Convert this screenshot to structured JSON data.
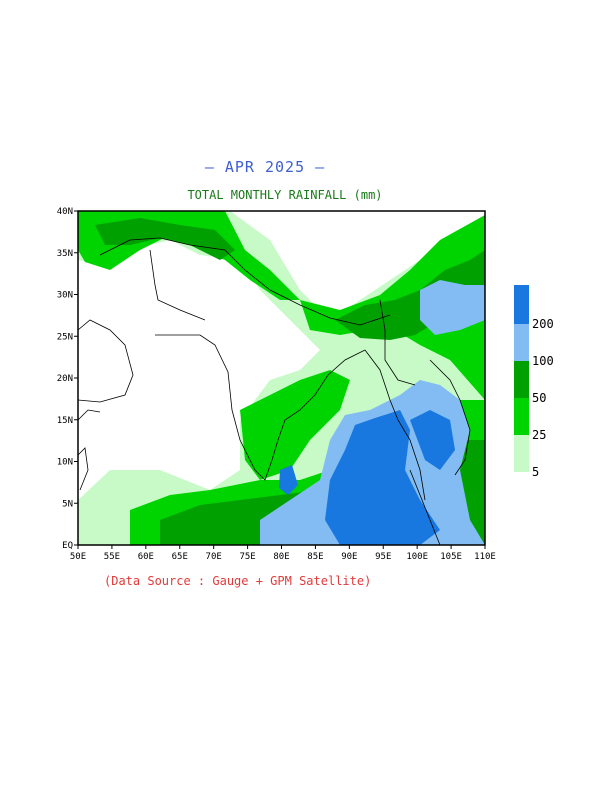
{
  "header": {
    "title": "— APR 2025 —",
    "subtitle": "TOTAL MONTHLY RAINFALL (mm)"
  },
  "footer": {
    "source": "(Data Source : Gauge + GPM Satellite)"
  },
  "map": {
    "lon_range": [
      50,
      110
    ],
    "lat_range": [
      0,
      40
    ],
    "lon_ticks": [
      "50E",
      "55E",
      "60E",
      "65E",
      "70E",
      "75E",
      "80E",
      "85E",
      "90E",
      "95E",
      "100E",
      "105E",
      "110E"
    ],
    "lat_ticks": [
      "EQ",
      "5N",
      "10N",
      "15N",
      "20N",
      "25N",
      "30N",
      "35N",
      "40N"
    ]
  },
  "legend": {
    "levels": [
      {
        "label": "5",
        "color": "#c8fac8"
      },
      {
        "label": "25",
        "color": "#00d400"
      },
      {
        "label": "50",
        "color": "#00a000"
      },
      {
        "label": "100",
        "color": "#82bcf2"
      },
      {
        "label": "200",
        "color": "#1878e0"
      }
    ],
    "top_color": "#1878e0"
  }
}
